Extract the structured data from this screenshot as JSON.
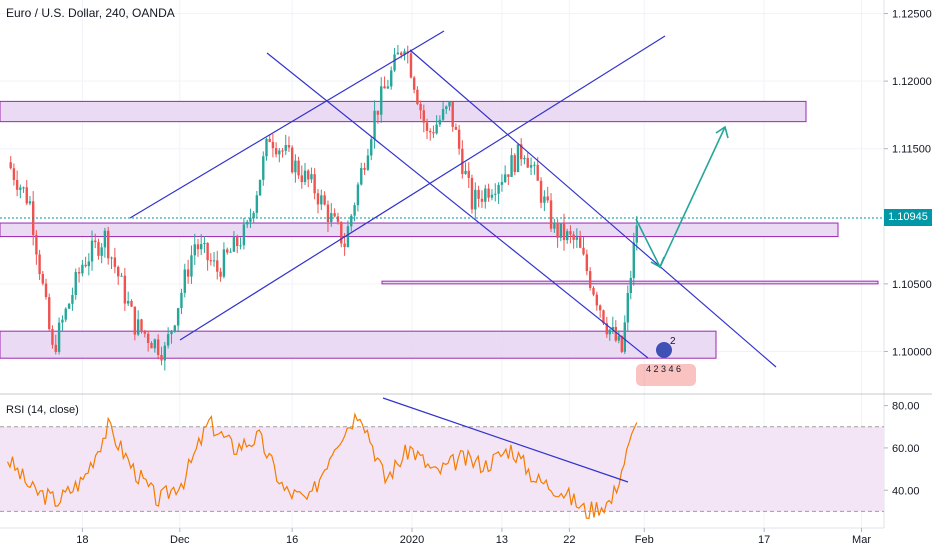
{
  "header": {
    "symbol_title": "Euro / U.S. Dollar, 240, OANDA"
  },
  "rsi_panel": {
    "label": "RSI (14, close)",
    "ticks": [
      "80.00",
      "60.00",
      "40.00"
    ]
  },
  "price_axis": {
    "ticks": [
      "1.12500",
      "1.12000",
      "1.11500",
      "1.10500",
      "1.10000"
    ],
    "current_price": "1.10945"
  },
  "time_axis": {
    "ticks": [
      "18",
      "Dec",
      "16",
      "2020",
      "13",
      "22",
      "Feb",
      "17",
      "Mar"
    ]
  },
  "markers": {
    "badge_top": "2",
    "badge_bottom": "4 2 3 4 6"
  },
  "colors": {
    "bull": "#26a69a",
    "bear": "#ef5350",
    "trendline": "#3333cc",
    "zone_fill": "#e6d3f2",
    "zone_border": "#9c27b0",
    "rsi_line": "#f57c00",
    "rsi_band": "#f3e5f5",
    "current_price": "#0097a7",
    "projection": "#26a69a"
  },
  "chart_data": {
    "type": "candlestick",
    "title": "Euro / U.S. Dollar, 240, OANDA",
    "y_range": [
      1.097,
      1.126
    ],
    "close_path": [
      {
        "x": "2019-11-08",
        "y": 1.114
      },
      {
        "x": "2019-11-11",
        "y": 1.111
      },
      {
        "x": "2019-11-14",
        "y": 1.1
      },
      {
        "x": "2019-11-18",
        "y": 1.1065
      },
      {
        "x": "2019-11-21",
        "y": 1.1085
      },
      {
        "x": "2019-11-25",
        "y": 1.102
      },
      {
        "x": "2019-11-29",
        "y": 1.1
      },
      {
        "x": "2019-12-03",
        "y": 1.108
      },
      {
        "x": "2019-12-06",
        "y": 1.106
      },
      {
        "x": "2019-12-10",
        "y": 1.109
      },
      {
        "x": "2019-12-13",
        "y": 1.116
      },
      {
        "x": "2019-12-16",
        "y": 1.114
      },
      {
        "x": "2019-12-19",
        "y": 1.112
      },
      {
        "x": "2019-12-23",
        "y": 1.108
      },
      {
        "x": "2019-12-27",
        "y": 1.1175
      },
      {
        "x": "2019-12-31",
        "y": 1.123
      },
      {
        "x": "2020-01-03",
        "y": 1.116
      },
      {
        "x": "2020-01-06",
        "y": 1.118
      },
      {
        "x": "2020-01-09",
        "y": 1.111
      },
      {
        "x": "2020-01-13",
        "y": 1.113
      },
      {
        "x": "2020-01-16",
        "y": 1.115
      },
      {
        "x": "2020-01-20",
        "y": 1.109
      },
      {
        "x": "2020-01-23",
        "y": 1.108
      },
      {
        "x": "2020-01-27",
        "y": 1.102
      },
      {
        "x": "2020-01-29",
        "y": 1.1
      },
      {
        "x": "2020-01-31",
        "y": 1.1095
      }
    ],
    "current_price": 1.10945,
    "zones": [
      {
        "from": 1.117,
        "to": 1.1185
      },
      {
        "from": 1.1085,
        "to": 1.1095
      },
      {
        "from": 1.105,
        "to": 1.1052
      },
      {
        "from": 1.0995,
        "to": 1.1015
      }
    ],
    "rsi": {
      "name": "RSI (14, close)",
      "y_range": [
        25,
        85
      ],
      "band": [
        30,
        70
      ],
      "ticks": [
        80,
        60,
        40
      ],
      "values": [
        55,
        40,
        35,
        45,
        70,
        50,
        35,
        45,
        72,
        60,
        65,
        40,
        35,
        62,
        78,
        45,
        60,
        48,
        55,
        52,
        60,
        45,
        40,
        30,
        35,
        72
      ]
    }
  }
}
